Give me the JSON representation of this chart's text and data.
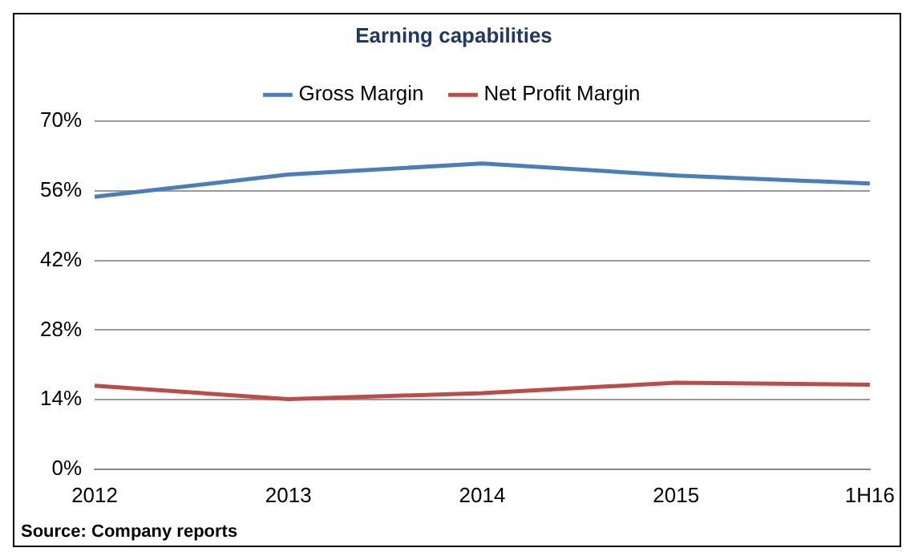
{
  "chart_data": {
    "type": "line",
    "title": "Earning capabilities",
    "categories": [
      "2012",
      "2013",
      "2014",
      "2015",
      "1H16"
    ],
    "series": [
      {
        "name": "Gross Margin",
        "color": "#4a7ebb",
        "values": [
          54.8,
          59.3,
          61.5,
          59.1,
          57.5
        ]
      },
      {
        "name": "Net Profit Margin",
        "color": "#be4b48",
        "values": [
          16.8,
          14.1,
          15.3,
          17.4,
          17.0
        ]
      }
    ],
    "ylim": [
      0,
      70
    ],
    "yticks": [
      {
        "value": 0,
        "label": "0%"
      },
      {
        "value": 14,
        "label": "14%"
      },
      {
        "value": 28,
        "label": "28%"
      },
      {
        "value": 42,
        "label": "42%"
      },
      {
        "value": 56,
        "label": "56%"
      },
      {
        "value": 70,
        "label": "70%"
      }
    ],
    "grid": "y",
    "legend": "top",
    "marker": "none",
    "line_style": "solid",
    "annotations": [
      "Source: Company reports"
    ]
  }
}
